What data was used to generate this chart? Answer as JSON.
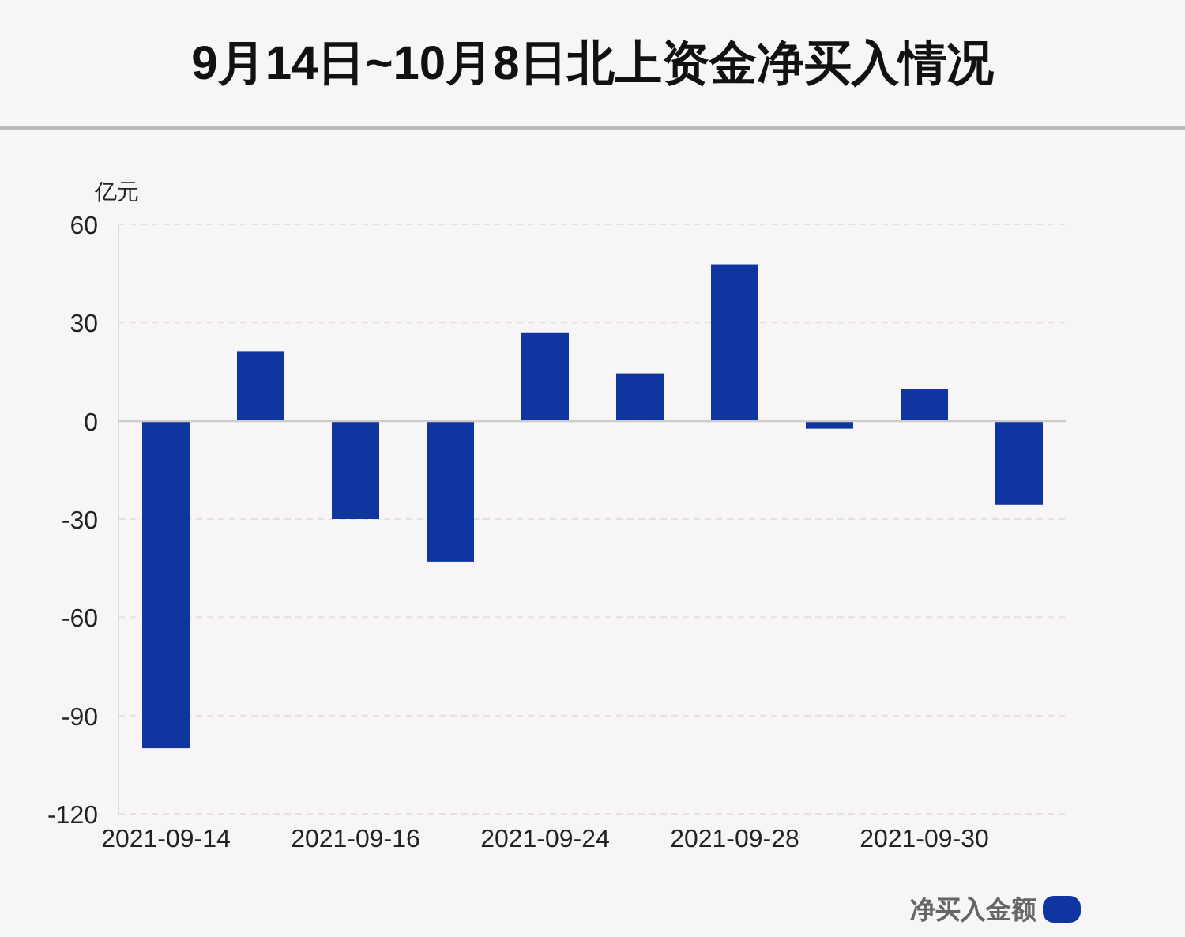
{
  "chart_data": {
    "type": "bar",
    "title": "9月14日~10月8日北上资金净买入情况",
    "ylabel": "亿元",
    "categories": [
      "2021-09-14",
      null,
      "2021-09-16",
      null,
      "2021-09-24",
      null,
      "2021-09-28",
      null,
      "2021-09-30",
      null
    ],
    "series": [
      {
        "name": "净买入金额",
        "color": "#0f35a0",
        "values": [
          -100,
          21.3,
          -30,
          -43,
          27,
          14.5,
          47.8,
          -2.4,
          9.7,
          -25.6
        ]
      }
    ],
    "ylim": [
      -120,
      60
    ],
    "yticks": [
      -120,
      -90,
      -60,
      -30,
      0,
      30,
      60
    ],
    "grid": "y",
    "legend": "bottom right"
  }
}
